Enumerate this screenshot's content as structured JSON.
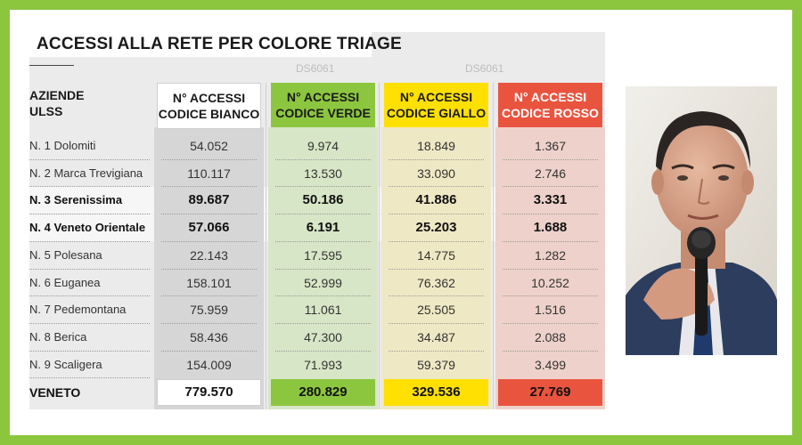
{
  "title": "ACCESSI ALLA RETE PER COLORE TRIAGE",
  "watermarks": [
    "DS6061",
    "DS6061"
  ],
  "row_header": [
    "AZIENDE",
    "ULSS"
  ],
  "columns": [
    {
      "line1": "N° ACCESSI",
      "line2": "CODICE BIANCO",
      "header_color": "#ffffff",
      "header_text_color": "#1a1a1a",
      "body_color": "#d6d6d6",
      "total_color": "#ffffff"
    },
    {
      "line1": "N° ACCESSI",
      "line2": "CODICE VERDE",
      "header_color": "#8cc63f",
      "header_text_color": "#1a1a1a",
      "body_color": "#d7e6c6",
      "total_color": "#8cc63f"
    },
    {
      "line1": "N° ACCESSI",
      "line2": "CODICE GIALLO",
      "header_color": "#ffe000",
      "header_text_color": "#1a1a1a",
      "body_color": "#efe8c4",
      "total_color": "#ffe000"
    },
    {
      "line1": "N° ACCESSI",
      "line2": "CODICE ROSSO",
      "header_color": "#e9543f",
      "header_text_color": "#ffffff",
      "body_color": "#eed1ca",
      "total_color": "#e9543f"
    }
  ],
  "rows": [
    {
      "name": "N. 1 Dolomiti",
      "values": [
        "54.052",
        "9.974",
        "18.849",
        "1.367"
      ],
      "bold": false
    },
    {
      "name": "N. 2 Marca Trevigiana",
      "values": [
        "110.117",
        "13.530",
        "33.090",
        "2.746"
      ],
      "bold": false
    },
    {
      "name": "N. 3 Serenissima",
      "values": [
        "89.687",
        "50.186",
        "41.886",
        "3.331"
      ],
      "bold": true
    },
    {
      "name": "N. 4 Veneto Orientale",
      "values": [
        "57.066",
        "6.191",
        "25.203",
        "1.688"
      ],
      "bold": true
    },
    {
      "name": "N. 5 Polesana",
      "values": [
        "22.143",
        "17.595",
        "14.775",
        "1.282"
      ],
      "bold": false
    },
    {
      "name": "N. 6 Euganea",
      "values": [
        "158.101",
        "52.999",
        "76.362",
        "10.252"
      ],
      "bold": false
    },
    {
      "name": "N. 7 Pedemontana",
      "values": [
        "75.959",
        "11.061",
        "25.505",
        "1.516"
      ],
      "bold": false
    },
    {
      "name": "N. 8 Berica",
      "values": [
        "58.436",
        "47.300",
        "34.487",
        "2.088"
      ],
      "bold": false
    },
    {
      "name": "N. 9 Scaligera",
      "values": [
        "154.009",
        "71.993",
        "59.379",
        "3.499"
      ],
      "bold": false
    }
  ],
  "total": {
    "name": "VENETO",
    "values": [
      "779.570",
      "280.829",
      "329.536",
      "27.769"
    ]
  }
}
